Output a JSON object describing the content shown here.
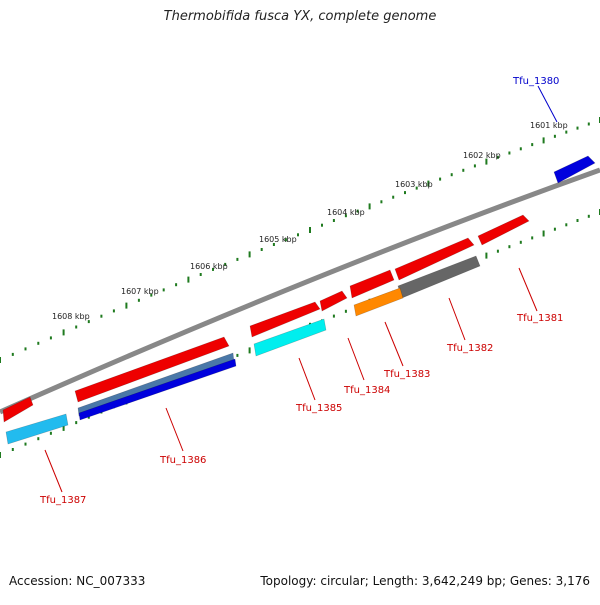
{
  "title": "Thermobifida fusca YX, complete genome",
  "footer": {
    "accession": "Accession: NC_007333",
    "summary": "Topology: circular; Length: 3,642,249 bp; Genes: 3,176"
  },
  "colors": {
    "backbone": "#888888",
    "tick": "#1f7a1f",
    "label_red": "#cc0000",
    "label_blue": "#0000cc",
    "red": "#ee0000",
    "cyan_light": "#22bbee",
    "cyan": "#00eeee",
    "steelblue": "#4a78a8",
    "blue": "#0000dd",
    "orange": "#ff8800",
    "gray": "#666666"
  },
  "kbp_labels": [
    "1601 kbp",
    "1602 kbp",
    "1603 kbp",
    "1604 kbp",
    "1605 kbp",
    "1606 kbp",
    "1607 kbp",
    "1608 kbp"
  ],
  "gene_labels": [
    "Tfu_1380",
    "Tfu_1381",
    "Tfu_1382",
    "Tfu_1383",
    "Tfu_1384",
    "Tfu_1385",
    "Tfu_1386",
    "Tfu_1387"
  ]
}
